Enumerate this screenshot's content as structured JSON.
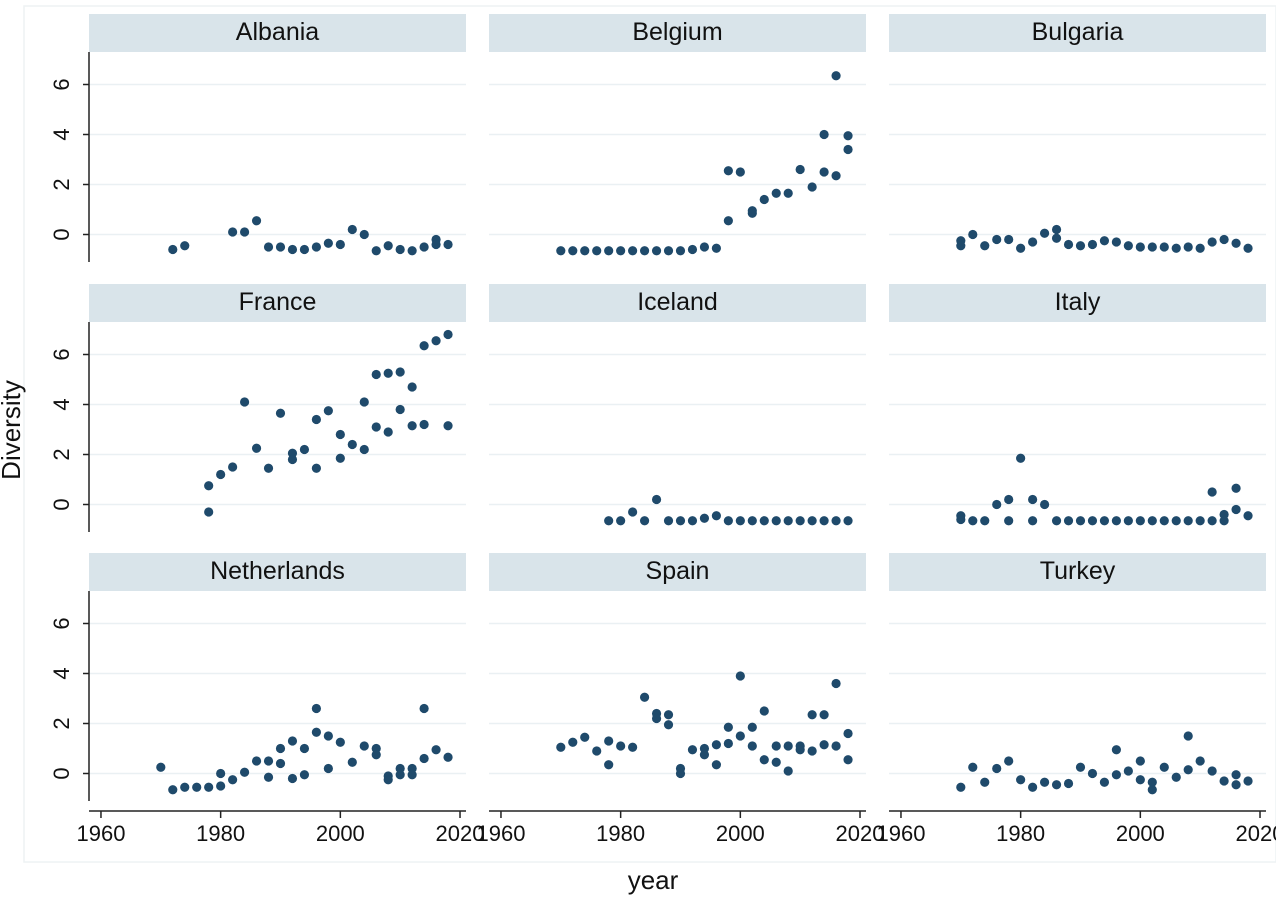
{
  "chart_data": {
    "type": "scatter",
    "xlabel": "year",
    "ylabel": "Diversity",
    "xlim": [
      1958,
      2021
    ],
    "ylim": [
      -1.1,
      7.3
    ],
    "xticks": [
      1960,
      1980,
      2000,
      2020
    ],
    "yticks": [
      0,
      2,
      4,
      6
    ],
    "grid": true,
    "marker_color": "#1f4a6b",
    "strip_color": "#d9e4ea",
    "panels": [
      {
        "name": "Albania",
        "x": [
          1972,
          1974,
          1982,
          1984,
          1986,
          1988,
          1990,
          1992,
          1994,
          1996,
          1998,
          2000,
          2002,
          2004,
          2006,
          2008,
          2010,
          2012,
          2014,
          2016,
          2016,
          2018
        ],
        "y": [
          -0.6,
          -0.45,
          0.1,
          0.1,
          0.55,
          -0.5,
          -0.5,
          -0.6,
          -0.6,
          -0.5,
          -0.35,
          -0.4,
          0.2,
          0.0,
          -0.65,
          -0.45,
          -0.6,
          -0.65,
          -0.5,
          -0.2,
          -0.4,
          -0.4
        ]
      },
      {
        "name": "Belgium",
        "x": [
          1970,
          1972,
          1974,
          1976,
          1978,
          1980,
          1982,
          1984,
          1986,
          1988,
          1990,
          1992,
          1994,
          1996,
          1998,
          1998,
          2000,
          2002,
          2002,
          2004,
          2006,
          2008,
          2010,
          2012,
          2014,
          2014,
          2016,
          2016,
          2018,
          2018
        ],
        "y": [
          -0.65,
          -0.65,
          -0.65,
          -0.65,
          -0.65,
          -0.65,
          -0.65,
          -0.65,
          -0.65,
          -0.65,
          -0.65,
          -0.6,
          -0.5,
          -0.55,
          0.55,
          2.55,
          2.5,
          0.85,
          0.95,
          1.4,
          1.65,
          1.65,
          2.6,
          1.9,
          4.0,
          2.5,
          2.35,
          6.35,
          3.95,
          3.4
        ]
      },
      {
        "name": "Bulgaria",
        "x": [
          1970,
          1970,
          1972,
          1974,
          1976,
          1978,
          1980,
          1982,
          1984,
          1986,
          1986,
          1988,
          1990,
          1992,
          1994,
          1996,
          1998,
          2000,
          2002,
          2004,
          2006,
          2008,
          2010,
          2012,
          2014,
          2016,
          2018
        ],
        "y": [
          -0.25,
          -0.45,
          0.0,
          -0.45,
          -0.2,
          -0.2,
          -0.55,
          -0.3,
          0.05,
          0.2,
          -0.15,
          -0.4,
          -0.45,
          -0.4,
          -0.25,
          -0.3,
          -0.45,
          -0.5,
          -0.5,
          -0.5,
          -0.55,
          -0.5,
          -0.55,
          -0.3,
          -0.2,
          -0.35,
          -0.55
        ]
      },
      {
        "name": "France",
        "x": [
          1978,
          1978,
          1980,
          1982,
          1984,
          1986,
          1988,
          1990,
          1992,
          1992,
          1994,
          1996,
          1996,
          1998,
          2000,
          2000,
          2002,
          2004,
          2004,
          2006,
          2006,
          2008,
          2008,
          2010,
          2010,
          2012,
          2012,
          2014,
          2014,
          2016,
          2018,
          2018
        ],
        "y": [
          0.75,
          -0.3,
          1.2,
          1.5,
          4.1,
          2.25,
          1.45,
          3.65,
          2.05,
          1.8,
          2.2,
          3.4,
          1.45,
          3.75,
          2.8,
          1.85,
          2.4,
          4.1,
          2.2,
          5.2,
          3.1,
          5.25,
          2.9,
          5.3,
          3.8,
          4.7,
          3.15,
          6.35,
          3.2,
          6.55,
          6.8,
          3.15
        ]
      },
      {
        "name": "Iceland",
        "x": [
          1978,
          1980,
          1982,
          1984,
          1986,
          1988,
          1990,
          1992,
          1994,
          1996,
          1998,
          2000,
          2002,
          2004,
          2006,
          2008,
          2010,
          2012,
          2014,
          2016,
          2018
        ],
        "y": [
          -0.65,
          -0.65,
          -0.3,
          -0.65,
          0.2,
          -0.65,
          -0.65,
          -0.65,
          -0.55,
          -0.45,
          -0.65,
          -0.65,
          -0.65,
          -0.65,
          -0.65,
          -0.65,
          -0.65,
          -0.65,
          -0.65,
          -0.65,
          -0.65
        ]
      },
      {
        "name": "Italy",
        "x": [
          1970,
          1970,
          1972,
          1974,
          1976,
          1978,
          1978,
          1980,
          1982,
          1982,
          1984,
          1986,
          1988,
          1990,
          1992,
          1994,
          1996,
          1998,
          2000,
          2002,
          2004,
          2006,
          2008,
          2010,
          2012,
          2012,
          2014,
          2014,
          2016,
          2016,
          2018
        ],
        "y": [
          -0.45,
          -0.6,
          -0.65,
          -0.65,
          0.0,
          0.2,
          -0.65,
          1.85,
          0.2,
          -0.65,
          0.0,
          -0.65,
          -0.65,
          -0.65,
          -0.65,
          -0.65,
          -0.65,
          -0.65,
          -0.65,
          -0.65,
          -0.65,
          -0.65,
          -0.65,
          -0.65,
          0.5,
          -0.65,
          -0.4,
          -0.65,
          0.65,
          -0.2,
          -0.45
        ]
      },
      {
        "name": "Netherlands",
        "x": [
          1970,
          1972,
          1974,
          1976,
          1978,
          1980,
          1980,
          1982,
          1984,
          1986,
          1988,
          1988,
          1990,
          1990,
          1992,
          1992,
          1994,
          1994,
          1996,
          1996,
          1998,
          1998,
          2000,
          2002,
          2004,
          2006,
          2006,
          2008,
          2008,
          2010,
          2010,
          2012,
          2012,
          2014,
          2014,
          2016,
          2018
        ],
        "y": [
          0.25,
          -0.65,
          -0.55,
          -0.55,
          -0.55,
          0.0,
          -0.5,
          -0.25,
          0.05,
          0.5,
          0.5,
          -0.15,
          1.0,
          0.4,
          1.3,
          -0.2,
          1.0,
          -0.05,
          2.6,
          1.65,
          1.5,
          0.2,
          1.25,
          0.45,
          1.1,
          1.0,
          0.75,
          -0.1,
          -0.25,
          0.2,
          -0.05,
          0.2,
          -0.05,
          2.6,
          0.6,
          0.95,
          0.65
        ]
      },
      {
        "name": "Spain",
        "x": [
          1970,
          1972,
          1974,
          1976,
          1978,
          1978,
          1980,
          1982,
          1984,
          1986,
          1986,
          1988,
          1988,
          1990,
          1990,
          1992,
          1994,
          1994,
          1996,
          1996,
          1998,
          1998,
          2000,
          2000,
          2002,
          2002,
          2004,
          2004,
          2006,
          2006,
          2008,
          2008,
          2010,
          2010,
          2012,
          2012,
          2014,
          2014,
          2016,
          2016,
          2018,
          2018
        ],
        "y": [
          1.05,
          1.25,
          1.45,
          0.9,
          1.3,
          0.35,
          1.1,
          1.05,
          3.05,
          2.4,
          2.2,
          2.35,
          1.95,
          0.2,
          0.0,
          0.95,
          1.0,
          0.75,
          1.15,
          0.35,
          1.85,
          1.2,
          3.9,
          1.5,
          1.85,
          1.1,
          2.5,
          0.55,
          1.1,
          0.45,
          1.1,
          0.1,
          1.1,
          0.95,
          2.35,
          0.9,
          2.35,
          1.15,
          3.6,
          1.1,
          1.6,
          0.55
        ]
      },
      {
        "name": "Turkey",
        "x": [
          1970,
          1972,
          1974,
          1976,
          1978,
          1980,
          1982,
          1984,
          1986,
          1988,
          1990,
          1992,
          1994,
          1996,
          1996,
          1998,
          2000,
          2000,
          2002,
          2002,
          2004,
          2006,
          2008,
          2008,
          2010,
          2012,
          2014,
          2016,
          2016,
          2018
        ],
        "y": [
          -0.55,
          0.25,
          -0.35,
          0.2,
          0.5,
          -0.25,
          -0.55,
          -0.35,
          -0.45,
          -0.4,
          0.25,
          0.0,
          -0.35,
          0.95,
          -0.05,
          0.1,
          0.5,
          -0.25,
          -0.35,
          -0.65,
          0.25,
          -0.15,
          1.5,
          0.15,
          0.5,
          0.1,
          -0.3,
          -0.05,
          -0.45,
          -0.3
        ]
      }
    ]
  }
}
